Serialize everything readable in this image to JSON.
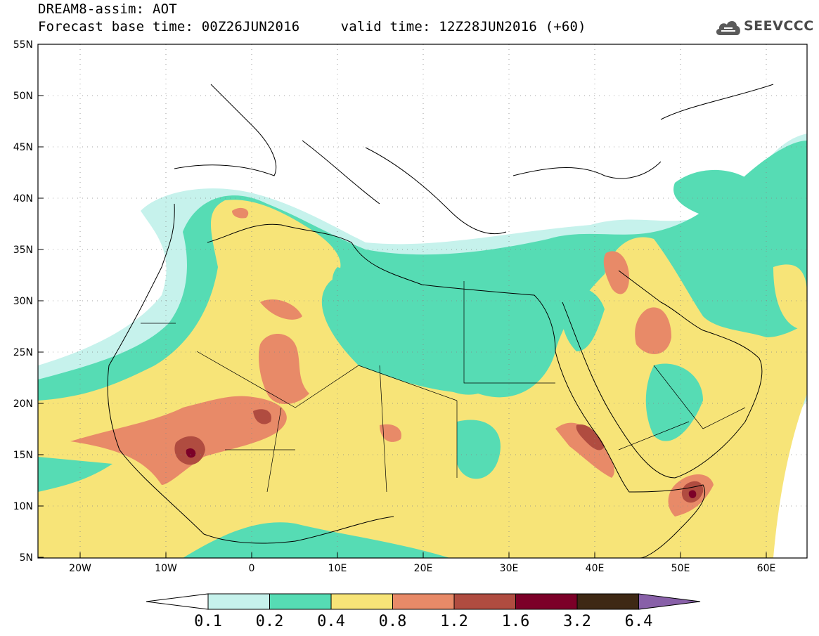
{
  "header": {
    "line1": "DREAM8-assim: AOT",
    "line2": "Forecast base time: 00Z26JUN2016     valid time: 12Z28JUN2016 (+60)"
  },
  "logo": {
    "text": "SEEVCCC",
    "icon": "cloud-icon"
  },
  "map": {
    "lat_labels": [
      "55N",
      "50N",
      "45N",
      "40N",
      "35N",
      "30N",
      "25N",
      "20N",
      "15N",
      "10N",
      "5N"
    ],
    "lon_labels": [
      "20W",
      "10W",
      "0",
      "10E",
      "20E",
      "30E",
      "40E",
      "50E",
      "60E"
    ]
  },
  "colorbar": {
    "labels": [
      "0.1",
      "0.2",
      "0.4",
      "0.8",
      "1.2",
      "1.6",
      "3.2",
      "6.4"
    ],
    "colors": [
      "#ffffff",
      "#c6f2ec",
      "#56dcb4",
      "#f7e478",
      "#e88a68",
      "#b04c40",
      "#7c0028",
      "#3e2814",
      "#8860a8"
    ]
  }
}
